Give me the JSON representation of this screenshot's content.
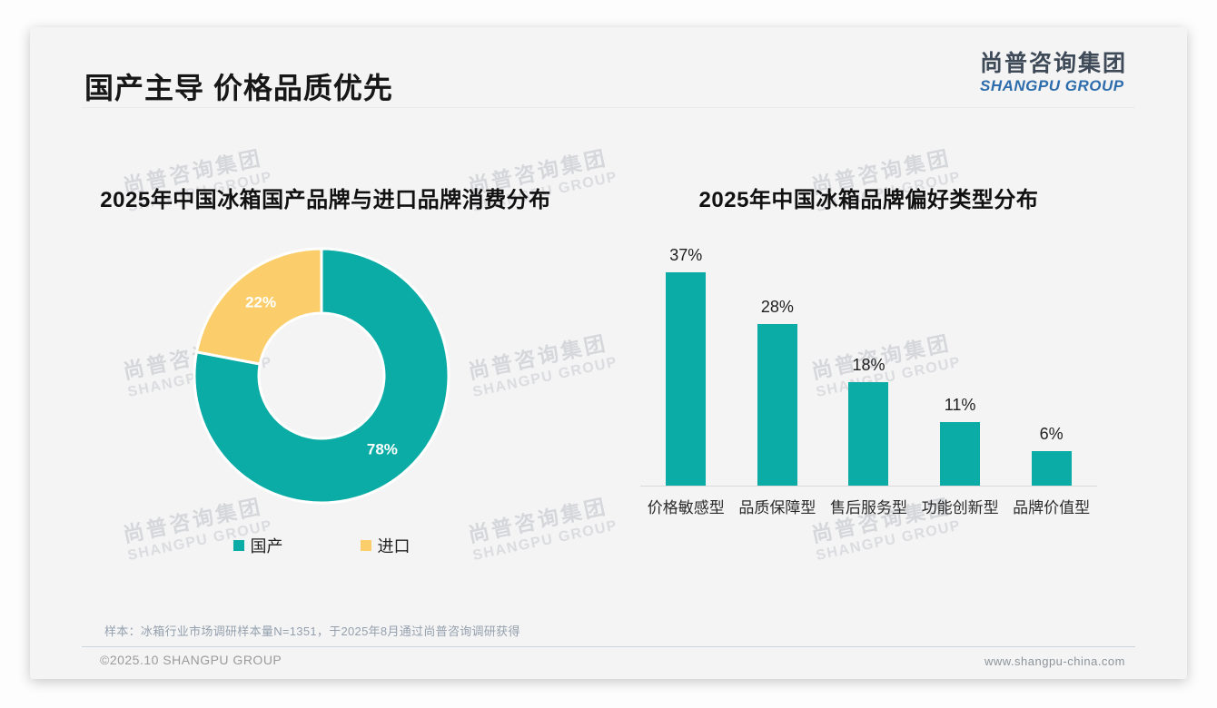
{
  "page": {
    "headline": "国产主导 价格品质优先",
    "logo": {
      "name_cn": "尚普咨询集团",
      "name_en": "SHANGPU GROUP"
    },
    "watermark": {
      "line1": "尚普咨询集团",
      "line2": "SHANGPU GROUP"
    },
    "footnote": "样本：冰箱行业市场调研样本量N=1351，于2025年8月通过尚普咨询调研获得",
    "footer": {
      "copyright": "©2025.10 SHANGPU GROUP",
      "website": "www.shangpu-china.com"
    }
  },
  "colors": {
    "teal": "#0aaca5",
    "yellow": "#fbce6b",
    "headline_text": "#171717"
  },
  "chart_data": [
    {
      "type": "pie",
      "subtype": "donut",
      "title": "2025年中国冰箱国产品牌与进口品牌消费分布",
      "labels": [
        "国产",
        "进口"
      ],
      "values": [
        78,
        22
      ],
      "unit": "%",
      "colors": [
        "#0aaca5",
        "#fbce6b"
      ],
      "data_labels": [
        "78%",
        "22%"
      ],
      "legend_position": "bottom",
      "start_angle_deg": 0,
      "direction": "clockwise"
    },
    {
      "type": "bar",
      "title": "2025年中国冰箱品牌偏好类型分布",
      "categories": [
        "价格敏感型",
        "品质保障型",
        "售后服务型",
        "功能创新型",
        "品牌价值型"
      ],
      "values": [
        37,
        28,
        18,
        11,
        6
      ],
      "unit": "%",
      "data_labels": [
        "37%",
        "28%",
        "18%",
        "11%",
        "6%"
      ],
      "bar_color": "#0aaca5",
      "ylim": [
        0,
        40
      ],
      "gridlines": false,
      "baseline": true
    }
  ]
}
